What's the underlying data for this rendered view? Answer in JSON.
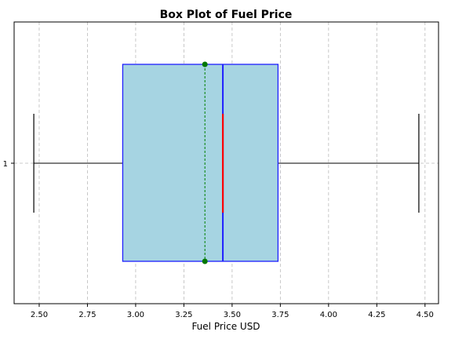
{
  "chart_data": {
    "type": "box",
    "title": "Box Plot of Fuel Price",
    "xlabel": "Fuel Price USD",
    "ylabel": "",
    "orientation": "horizontal",
    "xlim": [
      2.37,
      4.57
    ],
    "xticks": [
      "2.50",
      "2.75",
      "3.00",
      "3.25",
      "3.50",
      "3.75",
      "4.00",
      "4.25",
      "4.50"
    ],
    "xtick_values": [
      2.5,
      2.75,
      3.0,
      3.25,
      3.5,
      3.75,
      4.0,
      4.25,
      4.5
    ],
    "yticks": [
      "1"
    ],
    "grid": true,
    "series": [
      {
        "whisker_low": 2.472,
        "q1": 2.933,
        "median": 3.452,
        "q3": 3.738,
        "whisker_high": 4.468,
        "mean": 3.359
      }
    ],
    "colors": {
      "box_fill": "#a6d4e2",
      "box_edge": "#1f1fff",
      "median": "#ff0000",
      "mean_line": "#008000",
      "mean_marker": "#007700",
      "whisker": "#555555",
      "cap": "#000000",
      "grid": "#bbbbbb"
    }
  }
}
